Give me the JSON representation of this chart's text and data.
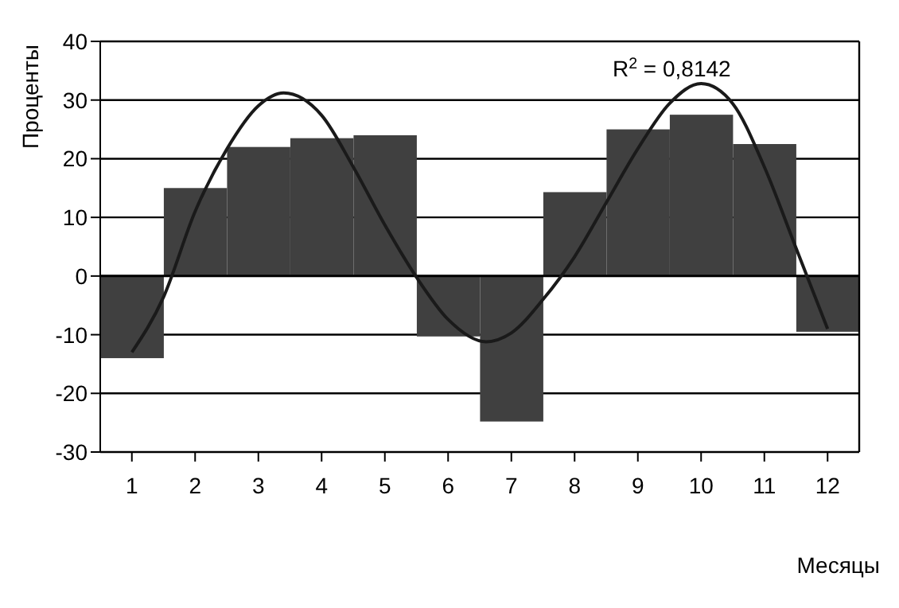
{
  "chart_data": {
    "type": "bar",
    "xlabel": "Месяцы",
    "ylabel": "Проценты",
    "x": [
      1,
      2,
      3,
      4,
      5,
      6,
      7,
      8,
      9,
      10,
      11,
      12
    ],
    "series": [
      {
        "color": "#404040",
        "values": [
          -14,
          15,
          22,
          23.5,
          24,
          -10.3,
          -24.8,
          14.3,
          25,
          27.5,
          22.5,
          -9.5
        ]
      },
      {
        "type": "line",
        "color": "#1a1a1a",
        "x": [
          1,
          1.5,
          2,
          2.5,
          3,
          3.4,
          4,
          4.5,
          5,
          5.5,
          6,
          6.6,
          7,
          7.5,
          8,
          8.5,
          9,
          9.5,
          10,
          10.5,
          11,
          11.5,
          12
        ],
        "values": [
          -13,
          -3.6,
          11,
          21.6,
          29,
          31.2,
          27.4,
          18.6,
          8.7,
          -0.2,
          -7.4,
          -11.2,
          -9.7,
          -4,
          3.3,
          12.5,
          21.7,
          29.4,
          32.8,
          29.4,
          18.6,
          4.8,
          -9
        ]
      }
    ],
    "xlim": [
      0.5,
      12.5
    ],
    "xticks": [
      1,
      2,
      3,
      4,
      5,
      6,
      7,
      8,
      9,
      10,
      11,
      12
    ],
    "ylim": [
      -30,
      40
    ],
    "yticks": [
      -30,
      -20,
      -10,
      0,
      10,
      20,
      30,
      40
    ],
    "grid": "y",
    "annotations": [
      "R$^{2}$ = 0,8142"
    ]
  }
}
